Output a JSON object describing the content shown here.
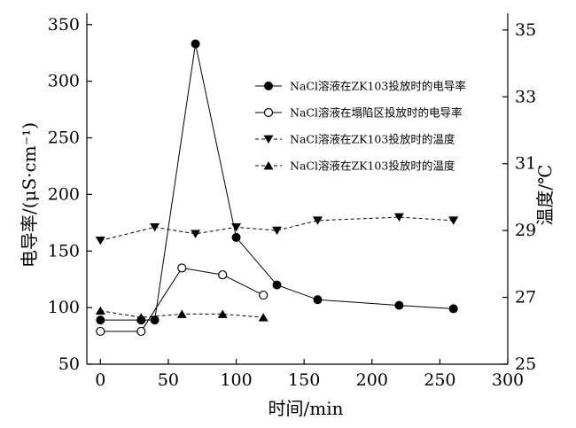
{
  "chart_data": {
    "type": "line",
    "xlabel": "时间/min",
    "ylabel_left": "电导率/(μS·cm⁻¹)",
    "ylabel_right": "温度/℃",
    "xlim": [
      -10,
      300
    ],
    "ylim_left": [
      50,
      360
    ],
    "ylim_right": [
      25,
      35.5
    ],
    "x_ticks": [
      0,
      50,
      100,
      150,
      200,
      250,
      300
    ],
    "y_left_ticks": [
      50,
      100,
      150,
      200,
      250,
      300,
      350
    ],
    "y_right_ticks": [
      25,
      27,
      29,
      31,
      33,
      35
    ],
    "grid": false,
    "legend_position": "upper-right",
    "series": [
      {
        "name": "NaCl溶液在ZK103投放时的电导率",
        "axis": "left",
        "marker": "filled-circle",
        "line": "solid",
        "points": [
          [
            0,
            89
          ],
          [
            30,
            89
          ],
          [
            40,
            89
          ],
          [
            70,
            333
          ],
          [
            100,
            162
          ],
          [
            130,
            120
          ],
          [
            160,
            107
          ],
          [
            220,
            102
          ],
          [
            260,
            99
          ]
        ]
      },
      {
        "name": "NaCl溶液在塌陷区投放时的电导率",
        "axis": "left",
        "marker": "open-circle",
        "line": "solid",
        "points": [
          [
            0,
            79
          ],
          [
            30,
            79
          ],
          [
            60,
            135
          ],
          [
            90,
            129
          ],
          [
            120,
            111
          ]
        ]
      },
      {
        "name": "NaCl溶液在ZK103投放时的温度",
        "axis": "right",
        "marker": "down-triangle",
        "line": "dashed",
        "points": [
          [
            0,
            28.7
          ],
          [
            40,
            29.1
          ],
          [
            70,
            28.9
          ],
          [
            100,
            29.1
          ],
          [
            130,
            29.0
          ],
          [
            160,
            29.3
          ],
          [
            220,
            29.4
          ],
          [
            260,
            29.3
          ]
        ]
      },
      {
        "name": "NaCl溶液在ZK103投放时的温度",
        "axis": "right",
        "marker": "up-triangle",
        "line": "dashed",
        "points": [
          [
            0,
            26.6
          ],
          [
            30,
            26.4
          ],
          [
            60,
            26.5
          ],
          [
            90,
            26.5
          ],
          [
            120,
            26.4
          ]
        ]
      }
    ]
  }
}
